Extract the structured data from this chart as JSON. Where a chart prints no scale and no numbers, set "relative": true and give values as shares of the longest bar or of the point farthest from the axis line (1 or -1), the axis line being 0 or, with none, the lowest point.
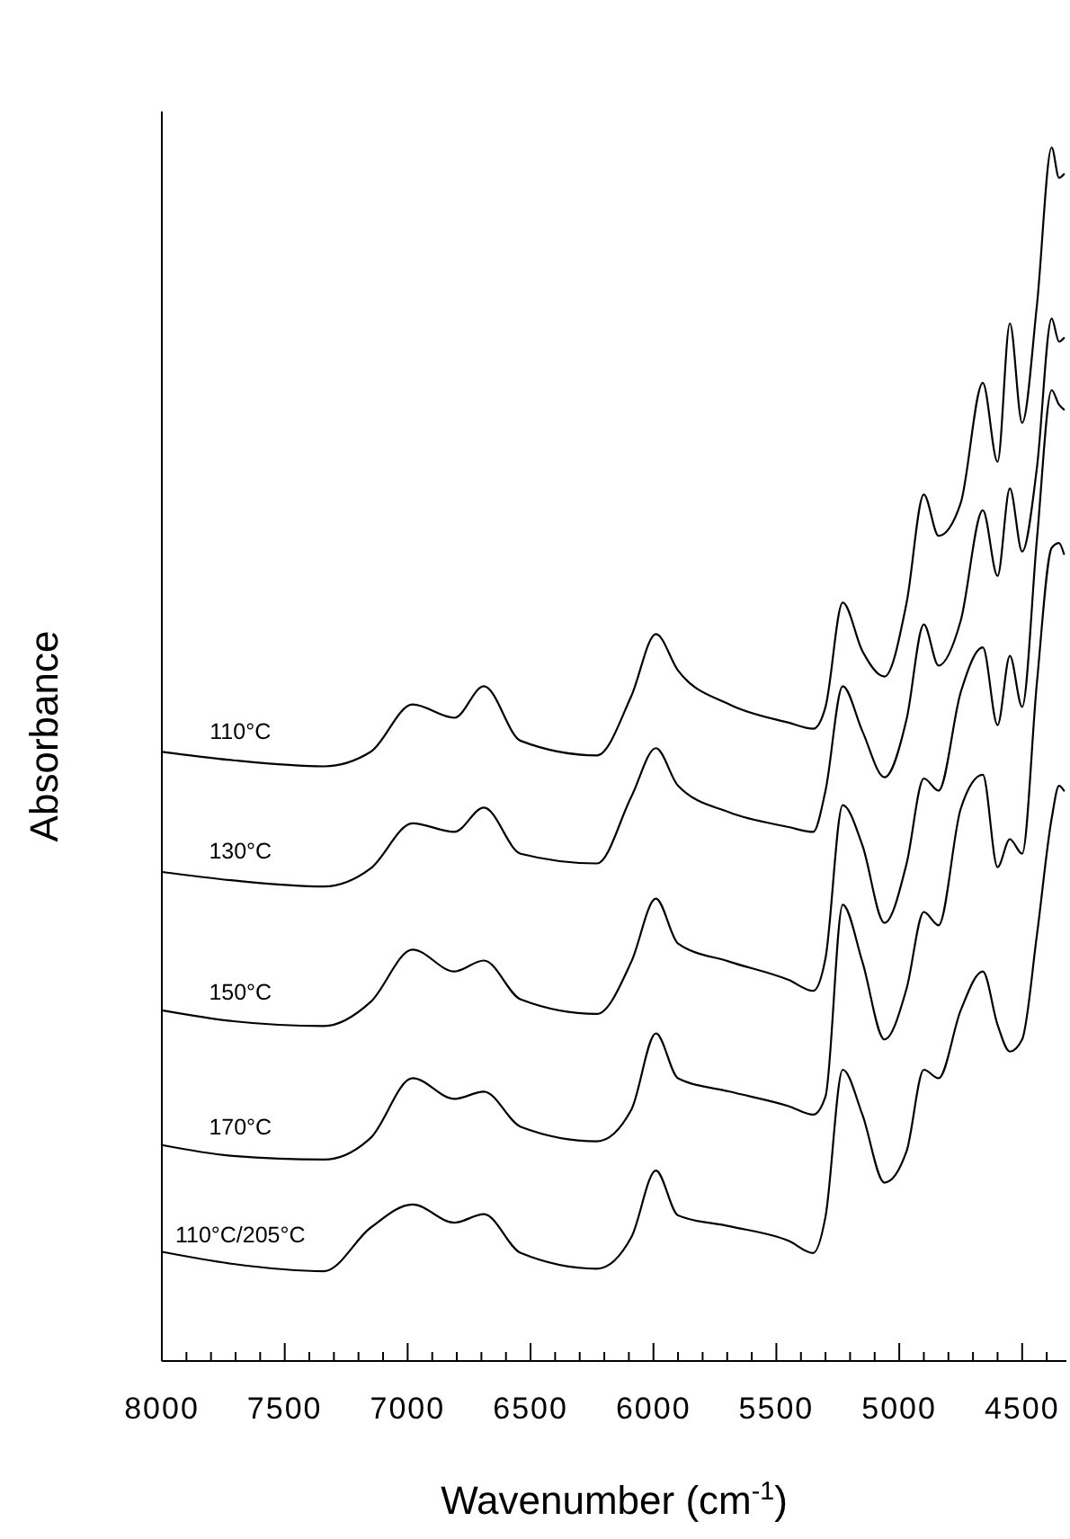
{
  "chart_data": {
    "type": "line",
    "relative": true,
    "xlabel": "Wavenumber (cm$^{-1}$)",
    "ylabel": "Absorbance",
    "legend": false,
    "x": [
      8000,
      7710,
      7340,
      7150,
      6980,
      6810,
      6690,
      6540,
      6230,
      6090,
      5990,
      5900,
      5690,
      5450,
      5350,
      5300,
      5230,
      5150,
      5060,
      4970,
      4900,
      4840,
      4750,
      4660,
      4600,
      4550,
      4500,
      4440,
      4380,
      4350,
      4330
    ],
    "xlim": [
      8000,
      4320
    ],
    "xticks": [
      8000,
      {
        "value": 7900,
        "label": null
      },
      {
        "value": 7800,
        "label": null
      },
      {
        "value": 7700,
        "label": null
      },
      {
        "value": 7600,
        "label": null
      },
      7500,
      {
        "value": 7400,
        "label": null
      },
      {
        "value": 7300,
        "label": null
      },
      {
        "value": 7200,
        "label": null
      },
      {
        "value": 7100,
        "label": null
      },
      7000,
      {
        "value": 6900,
        "label": null
      },
      {
        "value": 6800,
        "label": null
      },
      {
        "value": 6700,
        "label": null
      },
      {
        "value": 6600,
        "label": null
      },
      6500,
      {
        "value": 6400,
        "label": null
      },
      {
        "value": 6300,
        "label": null
      },
      {
        "value": 6200,
        "label": null
      },
      {
        "value": 6100,
        "label": null
      },
      6000,
      {
        "value": 5900,
        "label": null
      },
      {
        "value": 5800,
        "label": null
      },
      {
        "value": 5700,
        "label": null
      },
      {
        "value": 5600,
        "label": null
      },
      5500,
      {
        "value": 5400,
        "label": null
      },
      {
        "value": 5300,
        "label": null
      },
      {
        "value": 5200,
        "label": null
      },
      {
        "value": 5100,
        "label": null
      },
      5000,
      {
        "value": 4900,
        "label": null
      },
      {
        "value": 4800,
        "label": null
      },
      {
        "value": 4700,
        "label": null
      },
      {
        "value": 4600,
        "label": null
      },
      4500,
      {
        "value": 4400,
        "label": null
      }
    ],
    "series": [
      {
        "name": "110°C",
        "color": "#000000",
        "values": [
          0.502,
          0.495,
          0.49,
          0.502,
          0.541,
          0.53,
          0.556,
          0.511,
          0.499,
          0.548,
          0.599,
          0.569,
          0.541,
          0.526,
          0.521,
          0.539,
          0.625,
          0.585,
          0.564,
          0.625,
          0.714,
          0.68,
          0.707,
          0.806,
          0.741,
          0.855,
          0.773,
          0.87,
          1,
          0.975,
          0.978
        ]
      },
      {
        "name": "130°C",
        "color": "#000000",
        "values": [
          0.403,
          0.396,
          0.391,
          0.406,
          0.443,
          0.436,
          0.456,
          0.418,
          0.41,
          0.465,
          0.505,
          0.474,
          0.452,
          0.44,
          0.436,
          0.47,
          0.556,
          0.519,
          0.481,
          0.529,
          0.607,
          0.573,
          0.61,
          0.701,
          0.647,
          0.719,
          0.667,
          0.736,
          0.859,
          0.84,
          0.843
        ]
      },
      {
        "name": "150°C",
        "color": "#000000",
        "values": [
          0.289,
          0.28,
          0.276,
          0.296,
          0.339,
          0.321,
          0.33,
          0.298,
          0.286,
          0.329,
          0.381,
          0.344,
          0.329,
          0.314,
          0.305,
          0.332,
          0.458,
          0.425,
          0.361,
          0.41,
          0.48,
          0.47,
          0.551,
          0.588,
          0.524,
          0.581,
          0.539,
          0.677,
          0.8,
          0.788,
          0.784
        ]
      },
      {
        "name": "170°C",
        "color": "#000000",
        "values": [
          0.178,
          0.169,
          0.166,
          0.184,
          0.233,
          0.216,
          0.222,
          0.193,
          0.181,
          0.207,
          0.27,
          0.233,
          0.222,
          0.21,
          0.203,
          0.218,
          0.376,
          0.329,
          0.265,
          0.307,
          0.37,
          0.359,
          0.455,
          0.483,
          0.407,
          0.43,
          0.418,
          0.559,
          0.67,
          0.674,
          0.665
        ]
      },
      {
        "name": "110°C/205°C",
        "color": "#000000",
        "values": [
          0.09,
          0.08,
          0.074,
          0.11,
          0.129,
          0.114,
          0.121,
          0.089,
          0.076,
          0.102,
          0.157,
          0.12,
          0.111,
          0.099,
          0.089,
          0.119,
          0.24,
          0.203,
          0.147,
          0.173,
          0.24,
          0.233,
          0.289,
          0.321,
          0.277,
          0.255,
          0.265,
          0.351,
          0.447,
          0.474,
          0.47
        ]
      }
    ]
  }
}
